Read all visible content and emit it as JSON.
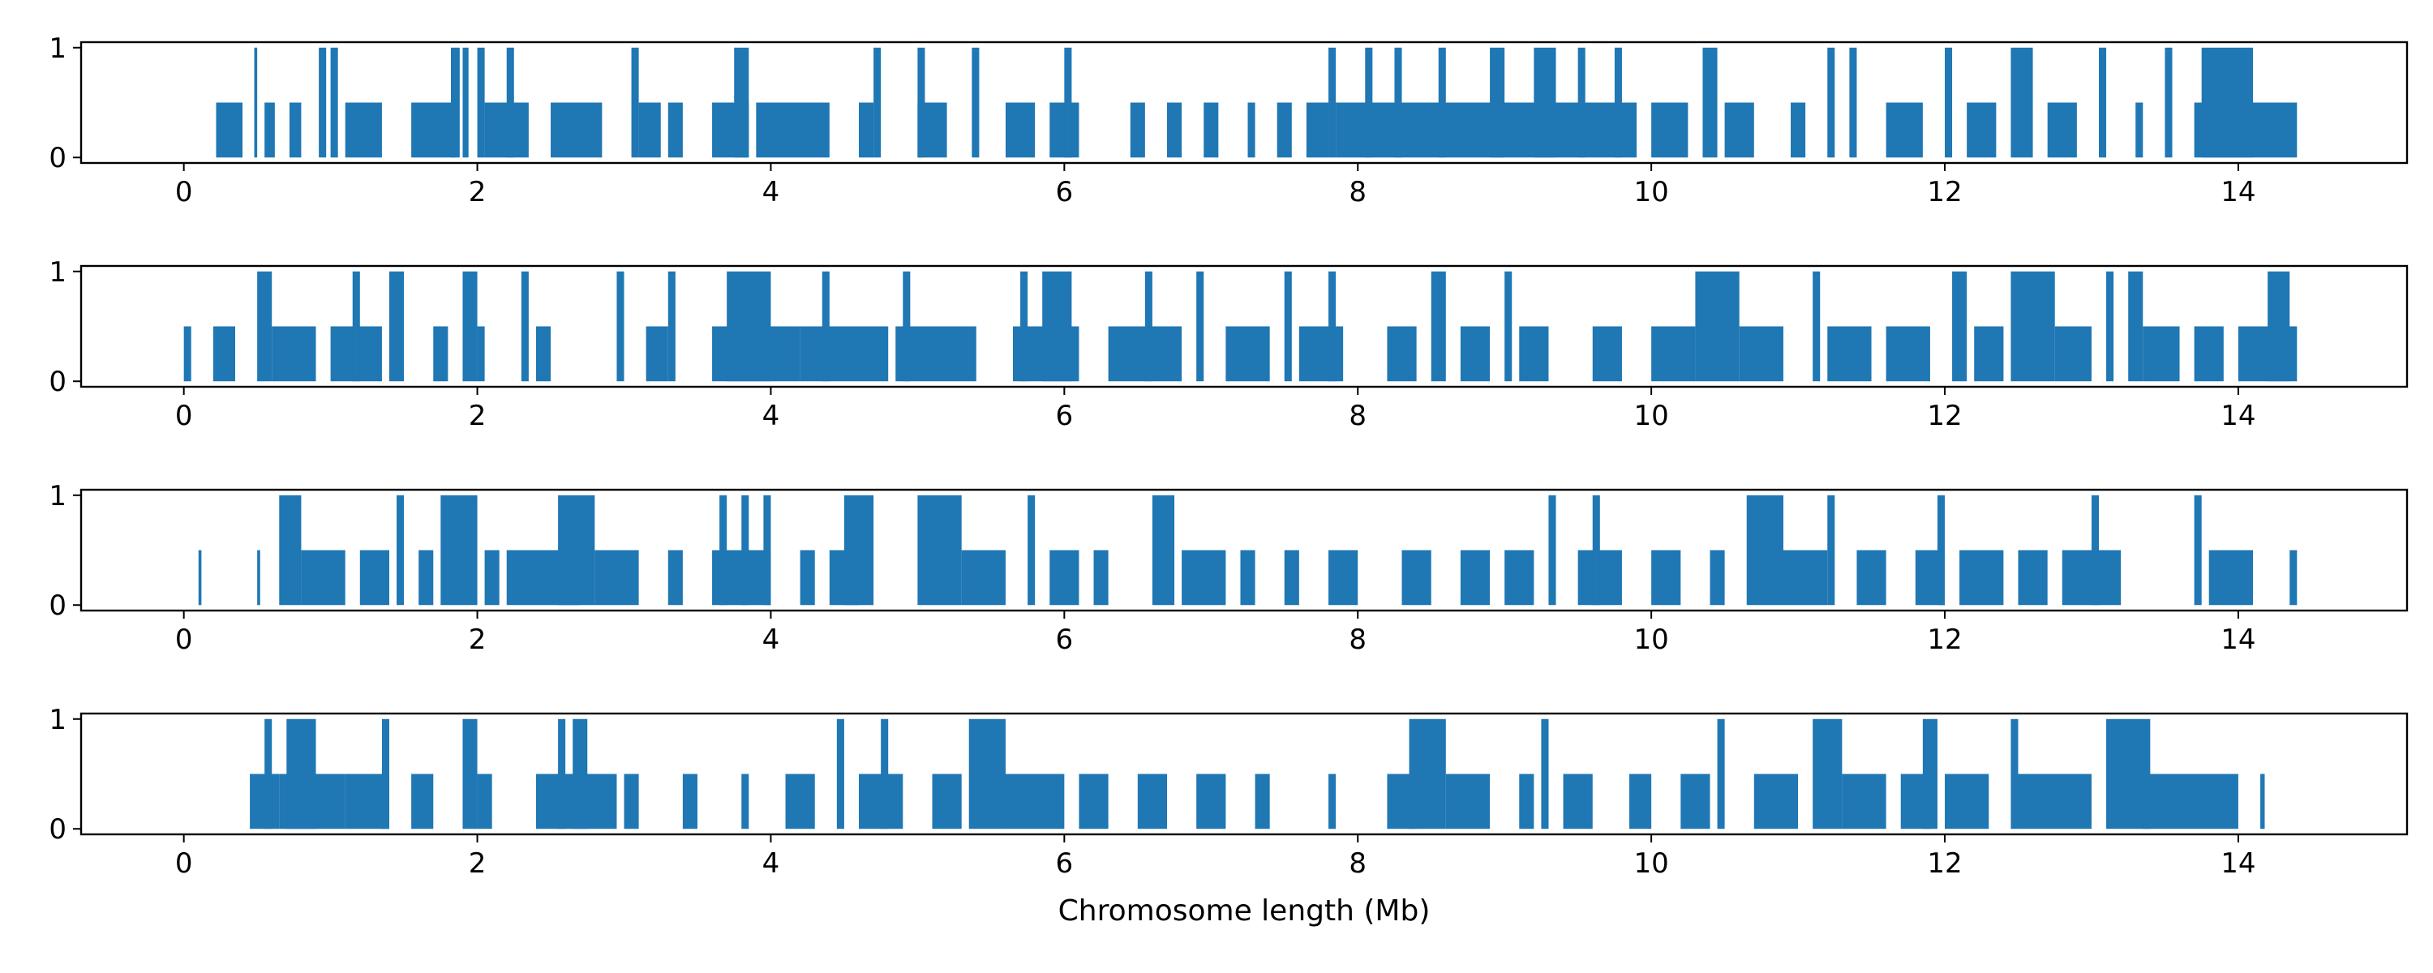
{
  "chart_data": {
    "type": "bar",
    "xlabel": "Chromosome length (Mb)",
    "shared_x": {
      "xlim": [
        -0.7,
        15.15
      ],
      "xticks": [
        0,
        2,
        4,
        6,
        8,
        10,
        12,
        14
      ],
      "xtick_labels": [
        "0",
        "2",
        "4",
        "6",
        "8",
        "10",
        "12",
        "14"
      ]
    },
    "shared_y": {
      "ylim": [
        -0.05,
        1.05
      ],
      "yticks": [
        0,
        1
      ],
      "ytick_labels": [
        "0",
        "1"
      ]
    },
    "bar_color": "#1f77b4",
    "grid": false,
    "panels": [
      {
        "name": "panel-1",
        "segments": [
          [
            0.22,
            0.4,
            0.5
          ],
          [
            0.48,
            0.5,
            1
          ],
          [
            0.55,
            0.62,
            0.5
          ],
          [
            0.72,
            0.8,
            0.5
          ],
          [
            0.92,
            0.97,
            1
          ],
          [
            1.0,
            1.05,
            1
          ],
          [
            1.1,
            1.35,
            0.5
          ],
          [
            1.55,
            1.85,
            0.5
          ],
          [
            1.82,
            1.88,
            1
          ],
          [
            1.9,
            1.94,
            1
          ],
          [
            2.0,
            2.05,
            1
          ],
          [
            2.05,
            2.35,
            0.5
          ],
          [
            2.2,
            2.25,
            1
          ],
          [
            2.5,
            2.85,
            0.5
          ],
          [
            3.1,
            3.25,
            0.5
          ],
          [
            3.05,
            3.1,
            1
          ],
          [
            3.3,
            3.4,
            0.5
          ],
          [
            3.6,
            3.85,
            0.5
          ],
          [
            3.75,
            3.85,
            1
          ],
          [
            3.9,
            4.4,
            0.5
          ],
          [
            4.6,
            4.7,
            0.5
          ],
          [
            4.7,
            4.75,
            1
          ],
          [
            5.0,
            5.05,
            1
          ],
          [
            5.0,
            5.2,
            0.5
          ],
          [
            5.37,
            5.42,
            1
          ],
          [
            5.6,
            5.8,
            0.5
          ],
          [
            5.9,
            6.1,
            0.5
          ],
          [
            6.0,
            6.05,
            1
          ],
          [
            6.45,
            6.55,
            0.5
          ],
          [
            6.7,
            6.8,
            0.5
          ],
          [
            6.95,
            7.05,
            0.5
          ],
          [
            7.25,
            7.3,
            0.5
          ],
          [
            7.45,
            7.55,
            0.5
          ],
          [
            7.65,
            7.8,
            0.5
          ],
          [
            7.8,
            7.85,
            1
          ],
          [
            7.85,
            9.9,
            0.5
          ],
          [
            8.05,
            8.1,
            1
          ],
          [
            8.25,
            8.3,
            1
          ],
          [
            8.55,
            8.6,
            1
          ],
          [
            8.9,
            9.0,
            1
          ],
          [
            9.2,
            9.35,
            1
          ],
          [
            9.5,
            9.55,
            1
          ],
          [
            9.75,
            9.8,
            1
          ],
          [
            10.0,
            10.25,
            0.5
          ],
          [
            10.35,
            10.45,
            1
          ],
          [
            10.5,
            10.7,
            0.5
          ],
          [
            10.95,
            11.05,
            0.5
          ],
          [
            11.2,
            11.25,
            1
          ],
          [
            11.35,
            11.4,
            1
          ],
          [
            11.6,
            11.85,
            0.5
          ],
          [
            12.0,
            12.05,
            1
          ],
          [
            12.15,
            12.35,
            0.5
          ],
          [
            12.45,
            12.6,
            1
          ],
          [
            12.7,
            12.9,
            0.5
          ],
          [
            13.05,
            13.1,
            1
          ],
          [
            13.3,
            13.35,
            0.5
          ],
          [
            13.5,
            13.55,
            1
          ],
          [
            13.7,
            14.4,
            0.5
          ],
          [
            13.75,
            14.1,
            1
          ]
        ]
      },
      {
        "name": "panel-2",
        "segments": [
          [
            0.0,
            0.05,
            0.5
          ],
          [
            0.2,
            0.35,
            0.5
          ],
          [
            0.5,
            0.6,
            1
          ],
          [
            0.6,
            0.9,
            0.5
          ],
          [
            1.0,
            1.35,
            0.5
          ],
          [
            1.15,
            1.2,
            1
          ],
          [
            1.4,
            1.5,
            1
          ],
          [
            1.7,
            1.8,
            0.5
          ],
          [
            1.9,
            2.0,
            1
          ],
          [
            2.0,
            2.05,
            0.5
          ],
          [
            2.3,
            2.35,
            1
          ],
          [
            2.4,
            2.5,
            0.5
          ],
          [
            2.95,
            3.0,
            1
          ],
          [
            3.15,
            3.3,
            0.5
          ],
          [
            3.3,
            3.35,
            1
          ],
          [
            3.6,
            4.2,
            0.5
          ],
          [
            3.7,
            4.0,
            1
          ],
          [
            4.2,
            4.8,
            0.5
          ],
          [
            4.35,
            4.4,
            1
          ],
          [
            4.85,
            5.1,
            0.5
          ],
          [
            4.9,
            4.95,
            1
          ],
          [
            5.1,
            5.4,
            0.5
          ],
          [
            5.65,
            6.1,
            0.5
          ],
          [
            5.7,
            5.75,
            1
          ],
          [
            5.85,
            6.05,
            1
          ],
          [
            6.3,
            6.8,
            0.5
          ],
          [
            6.55,
            6.6,
            1
          ],
          [
            6.9,
            6.95,
            1
          ],
          [
            7.1,
            7.4,
            0.5
          ],
          [
            7.5,
            7.55,
            1
          ],
          [
            7.6,
            7.9,
            0.5
          ],
          [
            7.8,
            7.85,
            1
          ],
          [
            8.2,
            8.4,
            0.5
          ],
          [
            8.5,
            8.6,
            1
          ],
          [
            8.7,
            8.9,
            0.5
          ],
          [
            9.0,
            9.05,
            1
          ],
          [
            9.1,
            9.3,
            0.5
          ],
          [
            9.6,
            9.8,
            0.5
          ],
          [
            10.0,
            10.3,
            0.5
          ],
          [
            10.3,
            10.6,
            1
          ],
          [
            10.6,
            10.9,
            0.5
          ],
          [
            11.1,
            11.15,
            1
          ],
          [
            11.2,
            11.5,
            0.5
          ],
          [
            11.6,
            11.9,
            0.5
          ],
          [
            12.05,
            12.15,
            1
          ],
          [
            12.2,
            12.4,
            0.5
          ],
          [
            12.45,
            12.75,
            1
          ],
          [
            12.75,
            13.0,
            0.5
          ],
          [
            13.1,
            13.15,
            1
          ],
          [
            13.25,
            13.35,
            1
          ],
          [
            13.35,
            13.6,
            0.5
          ],
          [
            13.7,
            13.9,
            0.5
          ],
          [
            14.0,
            14.4,
            0.5
          ],
          [
            14.2,
            14.35,
            1
          ]
        ]
      },
      {
        "name": "panel-3",
        "segments": [
          [
            0.1,
            0.12,
            0.5
          ],
          [
            0.5,
            0.52,
            0.5
          ],
          [
            0.65,
            0.8,
            1
          ],
          [
            0.8,
            1.1,
            0.5
          ],
          [
            1.2,
            1.4,
            0.5
          ],
          [
            1.45,
            1.5,
            1
          ],
          [
            1.6,
            1.7,
            0.5
          ],
          [
            1.75,
            2.0,
            1
          ],
          [
            2.05,
            2.15,
            0.5
          ],
          [
            2.2,
            2.7,
            0.5
          ],
          [
            2.55,
            2.8,
            1
          ],
          [
            2.8,
            3.1,
            0.5
          ],
          [
            3.3,
            3.4,
            0.5
          ],
          [
            3.6,
            4.0,
            0.5
          ],
          [
            3.65,
            3.7,
            1
          ],
          [
            3.8,
            3.85,
            1
          ],
          [
            3.95,
            4.0,
            1
          ],
          [
            4.2,
            4.3,
            0.5
          ],
          [
            4.4,
            4.6,
            0.5
          ],
          [
            4.5,
            4.7,
            1
          ],
          [
            5.0,
            5.3,
            1
          ],
          [
            5.3,
            5.6,
            0.5
          ],
          [
            5.75,
            5.8,
            1
          ],
          [
            5.9,
            6.1,
            0.5
          ],
          [
            6.2,
            6.3,
            0.5
          ],
          [
            6.6,
            6.75,
            1
          ],
          [
            6.8,
            7.1,
            0.5
          ],
          [
            7.2,
            7.3,
            0.5
          ],
          [
            7.5,
            7.6,
            0.5
          ],
          [
            7.8,
            8.0,
            0.5
          ],
          [
            8.3,
            8.5,
            0.5
          ],
          [
            8.7,
            8.9,
            0.5
          ],
          [
            9.0,
            9.2,
            0.5
          ],
          [
            9.3,
            9.35,
            1
          ],
          [
            9.5,
            9.8,
            0.5
          ],
          [
            9.6,
            9.65,
            1
          ],
          [
            10.0,
            10.2,
            0.5
          ],
          [
            10.4,
            10.5,
            0.5
          ],
          [
            10.65,
            10.9,
            1
          ],
          [
            10.9,
            11.2,
            0.5
          ],
          [
            11.2,
            11.25,
            1
          ],
          [
            11.4,
            11.6,
            0.5
          ],
          [
            11.8,
            12.0,
            0.5
          ],
          [
            11.95,
            12.0,
            1
          ],
          [
            12.1,
            12.4,
            0.5
          ],
          [
            12.5,
            12.7,
            0.5
          ],
          [
            12.8,
            13.2,
            0.5
          ],
          [
            13.0,
            13.05,
            1
          ],
          [
            13.7,
            13.75,
            1
          ],
          [
            13.8,
            14.1,
            0.5
          ],
          [
            14.35,
            14.4,
            0.5
          ]
        ]
      },
      {
        "name": "panel-4",
        "segments": [
          [
            0.45,
            0.65,
            0.5
          ],
          [
            0.55,
            0.6,
            1
          ],
          [
            0.65,
            1.1,
            0.5
          ],
          [
            0.7,
            0.9,
            1
          ],
          [
            1.1,
            1.4,
            0.5
          ],
          [
            1.35,
            1.4,
            1
          ],
          [
            1.55,
            1.7,
            0.5
          ],
          [
            1.9,
            2.0,
            1
          ],
          [
            2.0,
            2.1,
            0.5
          ],
          [
            2.4,
            2.95,
            0.5
          ],
          [
            2.55,
            2.6,
            1
          ],
          [
            2.65,
            2.75,
            1
          ],
          [
            3.0,
            3.1,
            0.5
          ],
          [
            3.4,
            3.5,
            0.5
          ],
          [
            3.8,
            3.85,
            0.5
          ],
          [
            4.1,
            4.3,
            0.5
          ],
          [
            4.45,
            4.5,
            1
          ],
          [
            4.6,
            4.9,
            0.5
          ],
          [
            4.75,
            4.8,
            1
          ],
          [
            5.1,
            5.3,
            0.5
          ],
          [
            5.35,
            5.6,
            1
          ],
          [
            5.6,
            6.0,
            0.5
          ],
          [
            6.1,
            6.3,
            0.5
          ],
          [
            6.5,
            6.7,
            0.5
          ],
          [
            6.9,
            7.1,
            0.5
          ],
          [
            7.3,
            7.4,
            0.5
          ],
          [
            7.8,
            7.85,
            0.5
          ],
          [
            8.2,
            8.4,
            0.5
          ],
          [
            8.35,
            8.6,
            1
          ],
          [
            8.6,
            8.9,
            0.5
          ],
          [
            9.1,
            9.2,
            0.5
          ],
          [
            9.25,
            9.3,
            1
          ],
          [
            9.4,
            9.6,
            0.5
          ],
          [
            9.85,
            10.0,
            0.5
          ],
          [
            10.2,
            10.4,
            0.5
          ],
          [
            10.45,
            10.5,
            1
          ],
          [
            10.7,
            11.0,
            0.5
          ],
          [
            11.1,
            11.3,
            1
          ],
          [
            11.3,
            11.6,
            0.5
          ],
          [
            11.7,
            11.9,
            0.5
          ],
          [
            11.85,
            11.95,
            1
          ],
          [
            12.0,
            12.3,
            0.5
          ],
          [
            12.45,
            12.5,
            1
          ],
          [
            12.5,
            13.0,
            0.5
          ],
          [
            13.1,
            13.4,
            1
          ],
          [
            13.35,
            14.0,
            0.5
          ],
          [
            14.15,
            14.18,
            0.5
          ]
        ]
      }
    ]
  }
}
